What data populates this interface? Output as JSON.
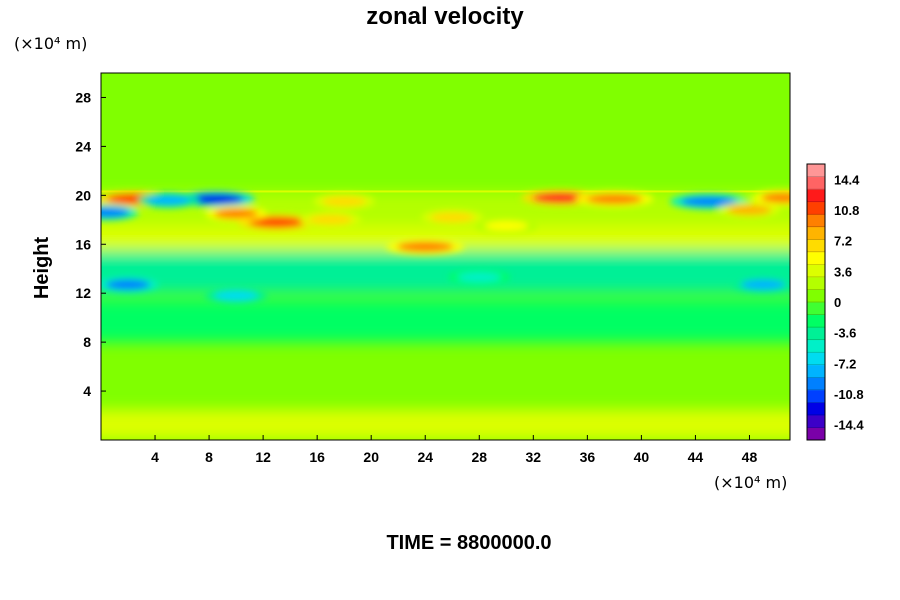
{
  "chart_data": {
    "type": "heatmap",
    "title": "zonal velocity",
    "xlabel": "",
    "ylabel": "Height",
    "x_unit": "(×10⁴ m)",
    "y_unit": "(×10⁴ m)",
    "xlim": [
      0,
      51
    ],
    "ylim": [
      0,
      30
    ],
    "x_ticks": [
      4,
      8,
      12,
      16,
      20,
      24,
      28,
      32,
      36,
      40,
      44,
      48
    ],
    "y_ticks": [
      4,
      8,
      12,
      16,
      20,
      24,
      28
    ],
    "colorbar": {
      "ticks": [
        14.4,
        10.8,
        7.2,
        3.6,
        0,
        -3.6,
        -7.2,
        -10.8,
        -14.4
      ],
      "range": [
        -16.2,
        16.2
      ],
      "colors": [
        "#7a00a8",
        "#3c00c8",
        "#0000e6",
        "#0040ff",
        "#0080ff",
        "#00b4ff",
        "#00dcf0",
        "#00f0c8",
        "#00f096",
        "#00ff64",
        "#40ff32",
        "#80ff00",
        "#b4ff00",
        "#dcff00",
        "#ffff00",
        "#ffdc00",
        "#ffb400",
        "#ff8000",
        "#ff4000",
        "#ff1a1a",
        "#ff6464",
        "#ff9696"
      ]
    },
    "grid": false,
    "structures": [
      {
        "x": 2.5,
        "y": 19.7,
        "u": 11
      },
      {
        "x": 8.5,
        "y": 19.7,
        "u": -13
      },
      {
        "x": 13,
        "y": 17.8,
        "u": 11
      },
      {
        "x": 10,
        "y": 18.5,
        "u": 9
      },
      {
        "x": 18,
        "y": 19.5,
        "u": 6
      },
      {
        "x": 24,
        "y": 15.8,
        "u": 10
      },
      {
        "x": 26,
        "y": 18.2,
        "u": 7
      },
      {
        "x": 34,
        "y": 19.8,
        "u": 12
      },
      {
        "x": 38,
        "y": 19.7,
        "u": 10
      },
      {
        "x": 45,
        "y": 19.5,
        "u": -10
      },
      {
        "x": 48,
        "y": 18.8,
        "u": 8
      },
      {
        "x": 50.5,
        "y": 19.8,
        "u": 9
      },
      {
        "x": 0.5,
        "y": 18.6,
        "u": -9
      },
      {
        "x": 5,
        "y": 19.6,
        "u": -8
      },
      {
        "x": 17,
        "y": 18,
        "u": 7
      },
      {
        "x": 30,
        "y": 17.5,
        "u": 5
      },
      {
        "x": 2,
        "y": 12.7,
        "u": -9
      },
      {
        "x": 49,
        "y": 12.7,
        "u": -8
      },
      {
        "x": 10,
        "y": 11.8,
        "u": -6
      },
      {
        "x": 28,
        "y": 13.3,
        "u": -5
      }
    ],
    "time_label": "TIME = 8800000.0"
  }
}
